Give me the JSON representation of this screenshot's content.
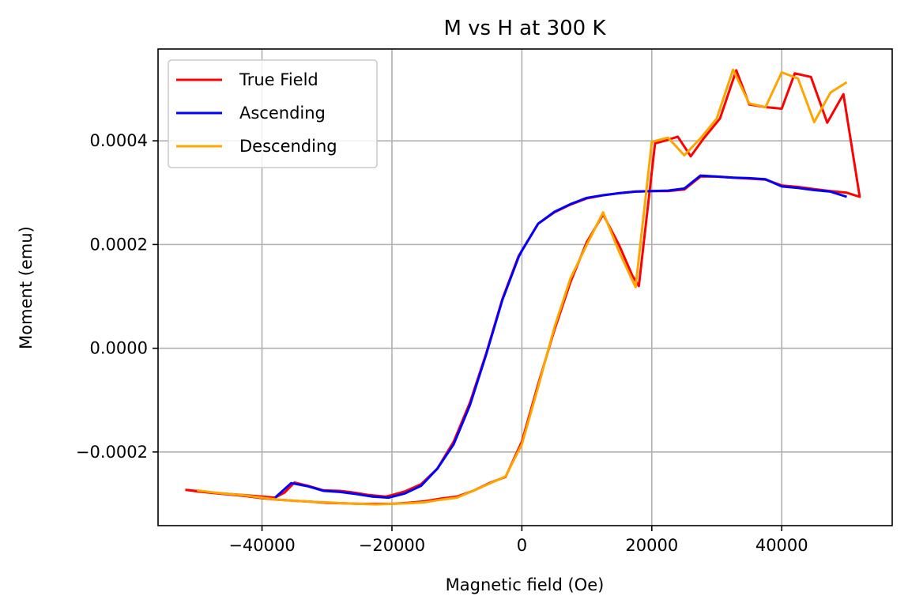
{
  "chart_data": {
    "type": "line",
    "title": "M vs H at 300 K",
    "xlabel": "Magnetic field (Oe)",
    "ylabel": "Moment (emu)",
    "xlim": [
      -56000,
      57000
    ],
    "ylim": [
      -0.000342,
      0.000577
    ],
    "xticks": [
      -40000,
      -20000,
      0,
      20000,
      40000
    ],
    "xtick_labels": [
      "−40000",
      "−20000",
      "0",
      "20000",
      "40000"
    ],
    "yticks": [
      -0.0002,
      0.0,
      0.0002,
      0.0004
    ],
    "ytick_labels": [
      "−0.0002",
      "0.0000",
      "0.0002",
      "0.0004"
    ],
    "grid": true,
    "legend_position": "top-left",
    "series": [
      {
        "name": "True Field",
        "color": "#ff0000",
        "x": [
          -51800,
          -47000,
          -42000,
          -38000,
          -36500,
          -35000,
          -33000,
          -30500,
          -28000,
          -26000,
          -23500,
          -21000,
          -20000,
          -18000,
          -15500,
          -13000,
          -10500,
          -8000,
          -5500,
          -3000,
          -500,
          0,
          2500,
          5000,
          7500,
          10000,
          12500,
          15000,
          17500,
          20000,
          22500,
          25000,
          27500,
          30000,
          32500,
          35000,
          37500,
          40000,
          42500,
          45000,
          47500,
          50000,
          52000,
          49500,
          47000,
          44500,
          42000,
          40000,
          37500,
          35000,
          33000,
          30500,
          28000,
          26000,
          24000,
          22000,
          20500,
          18000,
          17000,
          15000,
          12500,
          10000,
          7500,
          5000,
          2500,
          0,
          -2500,
          -5000,
          -7500,
          -10000,
          -12500,
          -15000,
          -17500,
          -20000,
          -22500,
          -25000,
          -27500,
          -30000,
          -32500,
          -35000,
          -37500,
          -40000,
          -42500,
          -45000,
          -47500,
          -50000,
          -51800
        ],
        "values": [
          -0.000273,
          -0.000279,
          -0.000284,
          -0.000288,
          -0.000278,
          -0.000259,
          -0.000265,
          -0.000274,
          -0.000275,
          -0.000278,
          -0.000283,
          -0.000286,
          -0.000283,
          -0.000276,
          -0.000262,
          -0.000232,
          -0.00018,
          -0.000105,
          -1e-05,
          9.5e-05,
          0.000178,
          0.000188,
          0.00024,
          0.000262,
          0.000277,
          0.000289,
          0.000295,
          0.000299,
          0.000302,
          0.000303,
          0.000303,
          0.000306,
          0.000331,
          0.000331,
          0.000329,
          0.000327,
          0.000325,
          0.000314,
          0.000311,
          0.000307,
          0.000303,
          0.0003,
          0.000292,
          0.00049,
          0.000435,
          0.000523,
          0.00053,
          0.000462,
          0.000465,
          0.00047,
          0.000536,
          0.000443,
          0.000405,
          0.00037,
          0.000408,
          0.0004,
          0.000395,
          0.00012,
          0.00014,
          0.000198,
          0.000258,
          0.000205,
          0.000128,
          3.5e-05,
          -7e-05,
          -0.00018,
          -0.000248,
          -0.00026,
          -0.000275,
          -0.000286,
          -0.00029,
          -0.000295,
          -0.000298,
          -0.0003,
          -0.0003,
          -0.0003,
          -0.000299,
          -0.000298,
          -0.000296,
          -0.000294,
          -0.000292,
          -0.000289,
          -0.000285,
          -0.000282,
          -0.000279,
          -0.000276,
          -0.000273
        ]
      },
      {
        "name": "Ascending",
        "color": "#0000ff",
        "x": [
          -38000,
          -35500,
          -33000,
          -30500,
          -28000,
          -25500,
          -23000,
          -20500,
          -18000,
          -15500,
          -13000,
          -10500,
          -8000,
          -5500,
          -3000,
          -500,
          0,
          2500,
          5000,
          7500,
          10000,
          12500,
          15000,
          17500,
          20000,
          22500,
          25000,
          27500,
          30000,
          32500,
          35000,
          37500,
          40000,
          42500,
          45000,
          47500,
          50000
        ],
        "values": [
          -0.000288,
          -0.00026,
          -0.000266,
          -0.000275,
          -0.000277,
          -0.000281,
          -0.000286,
          -0.000288,
          -0.00028,
          -0.000265,
          -0.000232,
          -0.000185,
          -0.00011,
          -1.2e-05,
          9.3e-05,
          0.000176,
          0.000188,
          0.00024,
          0.000263,
          0.000278,
          0.00029,
          0.000295,
          0.000299,
          0.000302,
          0.000303,
          0.000304,
          0.000308,
          0.000333,
          0.000331,
          0.000329,
          0.000328,
          0.000326,
          0.000312,
          0.000309,
          0.000305,
          0.000302,
          0.000292
        ]
      },
      {
        "name": "Descending",
        "color": "#ffa500",
        "x": [
          50000,
          47500,
          45000,
          42500,
          40000,
          37500,
          35000,
          32500,
          30000,
          27500,
          25000,
          22500,
          20000,
          17500,
          15000,
          12500,
          10000,
          7500,
          5000,
          2500,
          0,
          -2500,
          -5000,
          -7500,
          -10000,
          -12500,
          -15000,
          -17500,
          -20000,
          -22500,
          -25000,
          -27500,
          -30000,
          -32500,
          -35000,
          -37500,
          -40000,
          -42500,
          -45000,
          -47500,
          -50000
        ],
        "values": [
          0.000513,
          0.000493,
          0.000436,
          0.00052,
          0.000532,
          0.000465,
          0.000472,
          0.000537,
          0.000443,
          0.000405,
          0.000372,
          0.000406,
          0.000398,
          0.000118,
          0.000185,
          0.000262,
          0.0002,
          0.000135,
          4e-05,
          -7.5e-05,
          -0.000185,
          -0.000247,
          -0.000261,
          -0.000275,
          -0.000288,
          -0.000292,
          -0.000297,
          -0.000299,
          -0.0003,
          -0.000301,
          -0.0003,
          -0.000299,
          -0.000297,
          -0.000296,
          -0.000294,
          -0.000292,
          -0.000288,
          -0.000284,
          -0.000281,
          -0.000278,
          -0.000274
        ]
      }
    ]
  }
}
